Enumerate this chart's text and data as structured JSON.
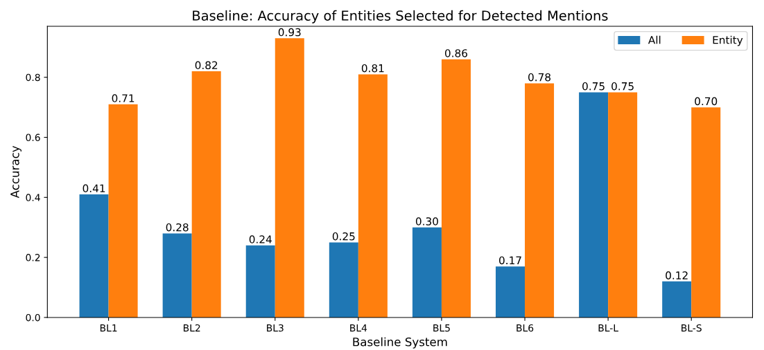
{
  "chart_data": {
    "type": "bar",
    "title": "Baseline: Accuracy of Entities Selected for Detected Mentions",
    "xlabel": "Baseline System",
    "ylabel": "Accuracy",
    "categories": [
      "BL1",
      "BL2",
      "BL3",
      "BL4",
      "BL5",
      "BL6",
      "BL-L",
      "BL-S"
    ],
    "series": [
      {
        "name": "All",
        "color": "#1f77b4",
        "values": [
          0.41,
          0.28,
          0.24,
          0.25,
          0.3,
          0.17,
          0.75,
          0.12
        ],
        "value_labels": [
          "0.41",
          "0.28",
          "0.24",
          "0.25",
          "0.30",
          "0.17",
          "0.75",
          "0.12"
        ]
      },
      {
        "name": "Entity",
        "color": "#ff7f0e",
        "values": [
          0.71,
          0.82,
          0.93,
          0.81,
          0.86,
          0.78,
          0.75,
          0.7
        ],
        "value_labels": [
          "0.71",
          "0.82",
          "0.93",
          "0.81",
          "0.86",
          "0.78",
          "0.75",
          "0.70"
        ]
      }
    ],
    "ylim": [
      0,
      0.97
    ],
    "yticks": [
      "0.0",
      "0.2",
      "0.4",
      "0.6",
      "0.8"
    ],
    "grid": false,
    "legend": "top right"
  }
}
